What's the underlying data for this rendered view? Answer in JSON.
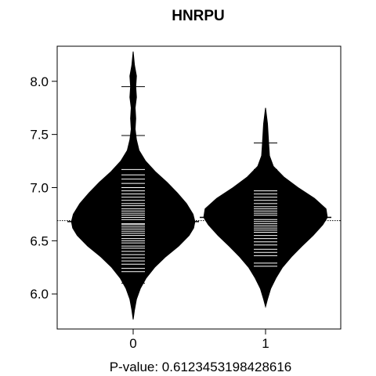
{
  "chart_data": {
    "type": "beanplot",
    "title": "HNRPU",
    "xlabel": "P-value: 0.6123453198428616",
    "ylabel": "",
    "categories": [
      "0",
      "1"
    ],
    "ylim": [
      5.67,
      8.33
    ],
    "y_ticks": [
      6.0,
      6.5,
      7.0,
      7.5,
      8.0
    ],
    "y_tick_labels": [
      "6.0",
      "6.5",
      "7.0",
      "7.5",
      "8.0"
    ],
    "overall_mean": 6.69,
    "grid": false,
    "legend": "none",
    "colors": {
      "bean": "#000000",
      "lines": "#ffffff",
      "axis": "#000000"
    },
    "series": [
      {
        "group": "0",
        "mean": 6.68,
        "range": [
          5.76,
          8.28
        ],
        "density": [
          [
            5.76,
            0.0
          ],
          [
            5.85,
            0.02
          ],
          [
            5.95,
            0.05
          ],
          [
            6.05,
            0.11
          ],
          [
            6.15,
            0.2
          ],
          [
            6.25,
            0.33
          ],
          [
            6.35,
            0.5
          ],
          [
            6.45,
            0.7
          ],
          [
            6.55,
            0.86
          ],
          [
            6.62,
            0.93
          ],
          [
            6.68,
            0.95
          ],
          [
            6.75,
            0.92
          ],
          [
            6.85,
            0.82
          ],
          [
            6.95,
            0.68
          ],
          [
            7.05,
            0.52
          ],
          [
            7.15,
            0.34
          ],
          [
            7.25,
            0.19
          ],
          [
            7.35,
            0.09
          ],
          [
            7.45,
            0.05
          ],
          [
            7.55,
            0.03
          ],
          [
            7.65,
            0.04
          ],
          [
            7.75,
            0.03
          ],
          [
            7.85,
            0.05
          ],
          [
            7.95,
            0.04
          ],
          [
            8.05,
            0.05
          ],
          [
            8.15,
            0.02
          ],
          [
            8.28,
            0.0
          ]
        ],
        "observations": [
          6.1,
          6.17,
          6.21,
          6.24,
          6.28,
          6.31,
          6.34,
          6.37,
          6.4,
          6.43,
          6.45,
          6.48,
          6.5,
          6.52,
          6.55,
          6.57,
          6.59,
          6.61,
          6.63,
          6.65,
          6.66,
          6.68,
          6.7,
          6.72,
          6.74,
          6.76,
          6.78,
          6.8,
          6.83,
          6.85,
          6.88,
          6.91,
          6.94,
          6.97,
          7.0,
          7.04,
          7.08,
          7.12,
          7.17,
          7.49,
          7.95
        ]
      },
      {
        "group": "1",
        "mean": 6.72,
        "range": [
          5.88,
          7.75
        ],
        "density": [
          [
            5.88,
            0.0
          ],
          [
            5.95,
            0.03
          ],
          [
            6.05,
            0.08
          ],
          [
            6.15,
            0.16
          ],
          [
            6.25,
            0.26
          ],
          [
            6.35,
            0.4
          ],
          [
            6.45,
            0.56
          ],
          [
            6.55,
            0.73
          ],
          [
            6.65,
            0.88
          ],
          [
            6.72,
            0.95
          ],
          [
            6.8,
            0.93
          ],
          [
            6.9,
            0.75
          ],
          [
            7.0,
            0.5
          ],
          [
            7.1,
            0.28
          ],
          [
            7.2,
            0.12
          ],
          [
            7.3,
            0.06
          ],
          [
            7.4,
            0.05
          ],
          [
            7.5,
            0.04
          ],
          [
            7.6,
            0.03
          ],
          [
            7.75,
            0.0
          ]
        ],
        "observations": [
          6.22,
          6.26,
          6.29,
          6.36,
          6.39,
          6.42,
          6.46,
          6.49,
          6.52,
          6.55,
          6.58,
          6.6,
          6.62,
          6.64,
          6.66,
          6.68,
          6.7,
          6.72,
          6.74,
          6.76,
          6.78,
          6.8,
          6.82,
          6.85,
          6.88,
          6.91,
          6.94,
          6.97,
          7.17,
          7.42
        ]
      }
    ]
  }
}
